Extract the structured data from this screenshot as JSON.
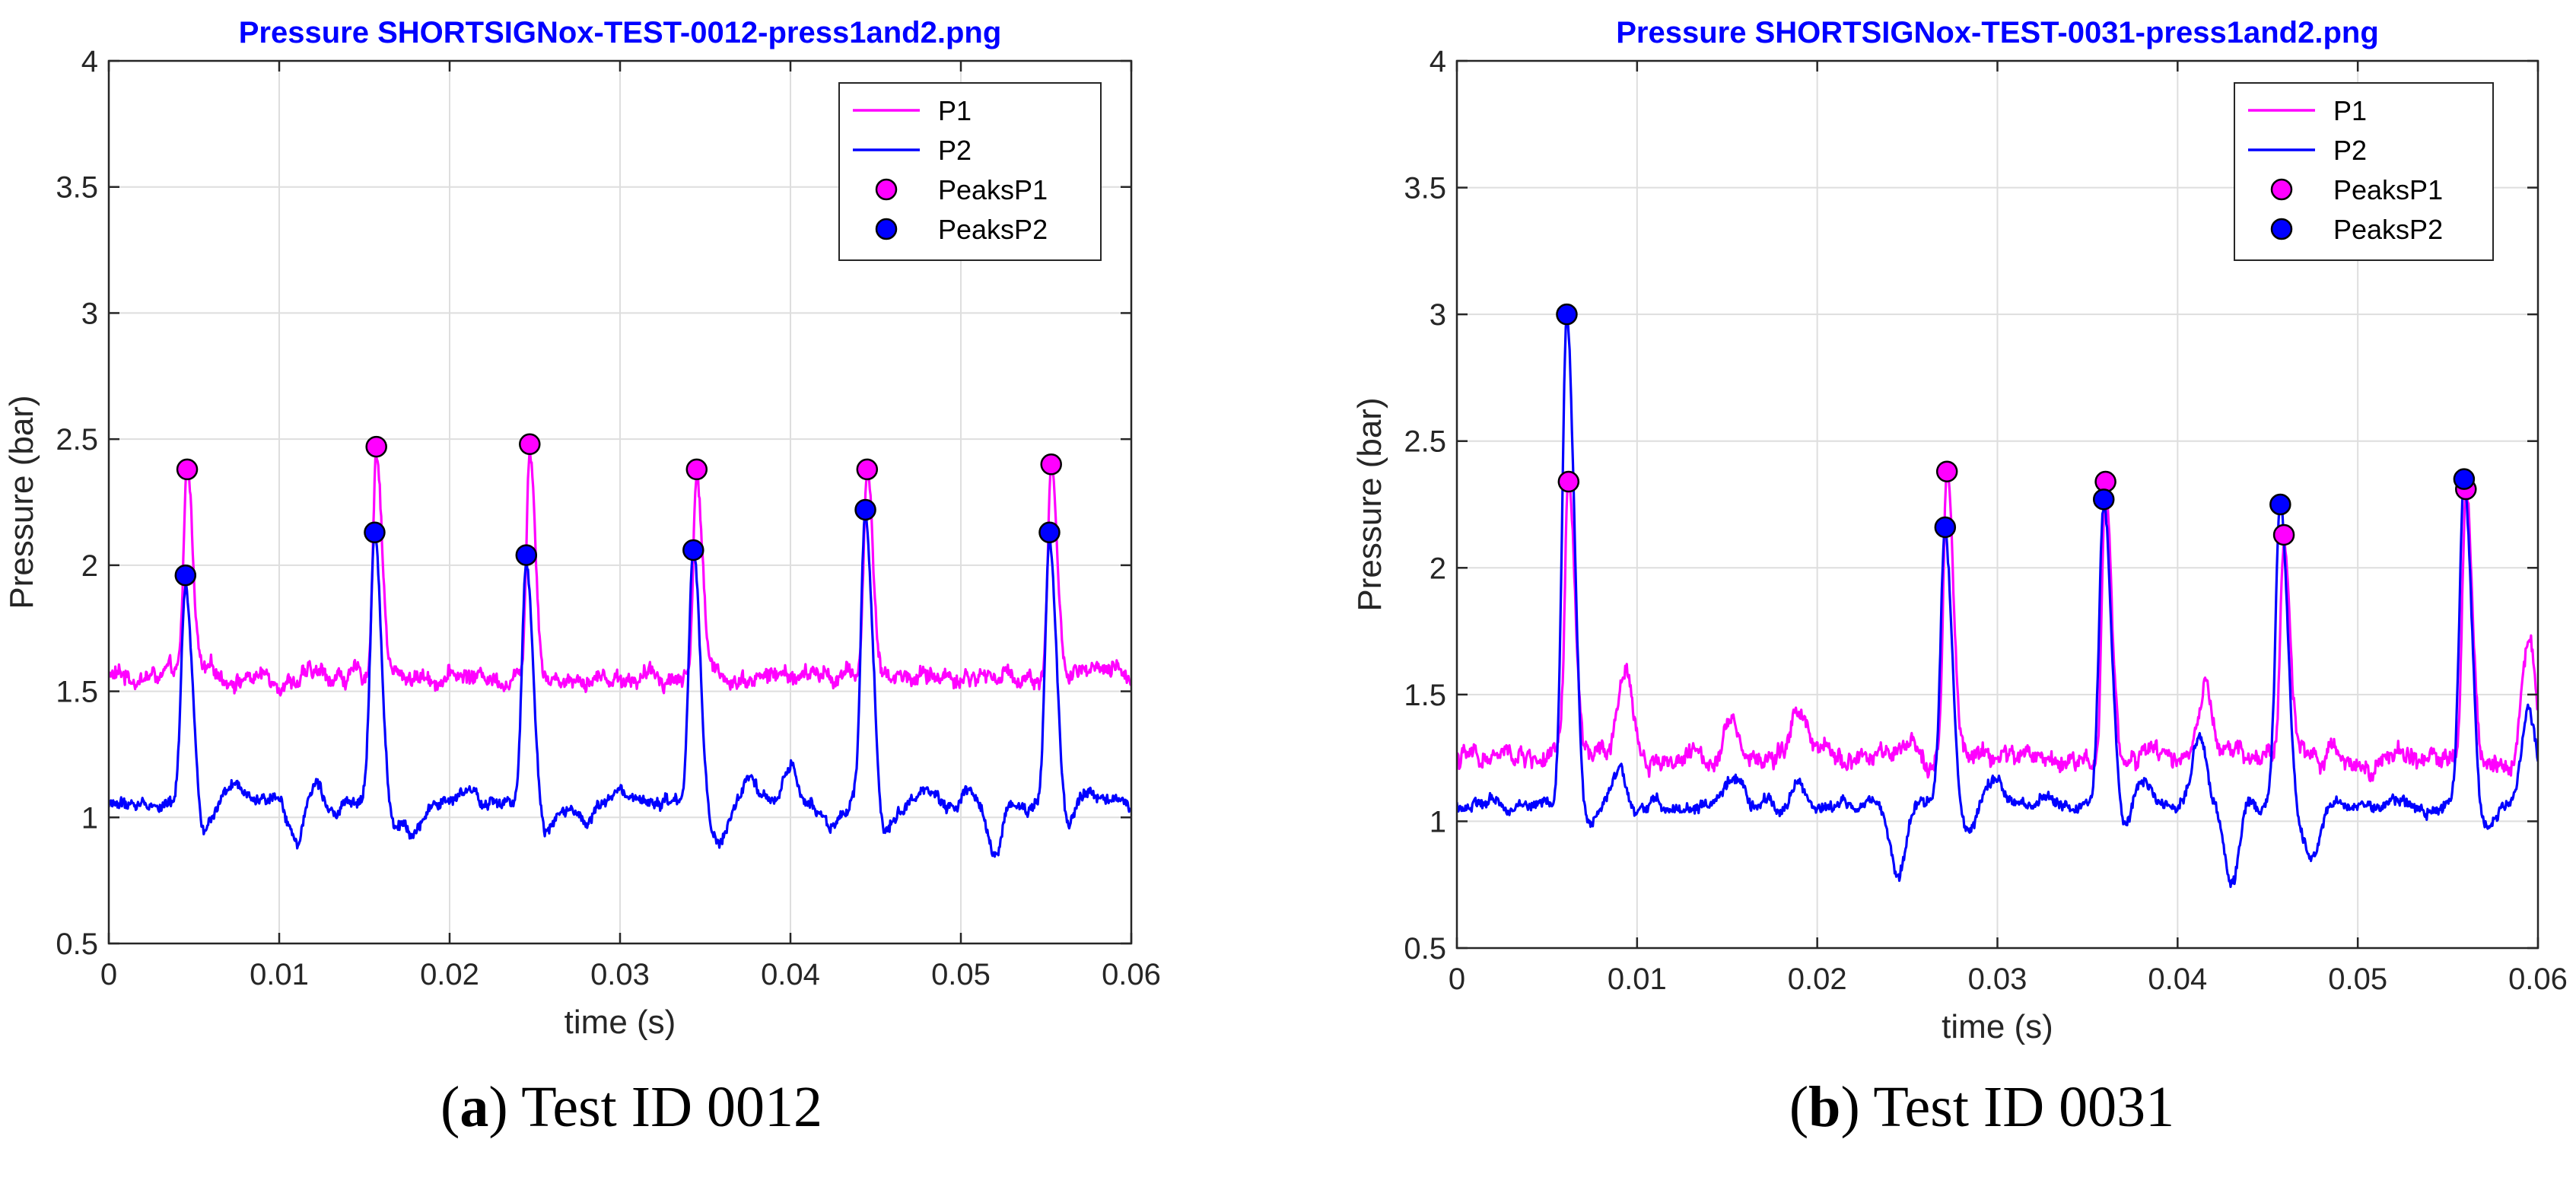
{
  "chart_data": [
    {
      "type": "line",
      "title": "Pressure SHORTSIGNox-TEST-0012-press1and2.png",
      "xlabel": "time (s)",
      "ylabel": "Pressure (bar)",
      "xlim": [
        0,
        0.06
      ],
      "ylim": [
        0.5,
        4
      ],
      "xticks": [
        0,
        0.01,
        0.02,
        0.03,
        0.04,
        0.05,
        0.06
      ],
      "xtick_labels": [
        "0",
        "0.01",
        "0.02",
        "0.03",
        "0.04",
        "0.05",
        "0.06"
      ],
      "yticks": [
        0.5,
        1,
        1.5,
        2,
        2.5,
        3,
        3.5,
        4
      ],
      "ytick_labels": [
        "0.5",
        "1",
        "1.5",
        "2",
        "2.5",
        "3",
        "3.5",
        "4"
      ],
      "grid": true,
      "legend_position": "top-right",
      "series": [
        {
          "name": "P1",
          "kind": "line",
          "color": "#ff00ff",
          "baseline": 1.56,
          "noise": 0.035,
          "peak_width": 0.00035
        },
        {
          "name": "P2",
          "kind": "line",
          "color": "#0000ff",
          "baseline": 1.05,
          "noise": 0.025,
          "peak_width": 0.00045,
          "bumps": [
            [
              0.0075,
              0.06
            ],
            [
              0.011,
              -0.15
            ],
            [
              0.0122,
              0.12
            ],
            [
              0.018,
              -0.1
            ],
            [
              0.021,
              0.05
            ],
            [
              0.028,
              -0.08
            ],
            [
              0.03,
              0.03
            ],
            [
              0.036,
              -0.12
            ],
            [
              0.0375,
              0.1
            ],
            [
              0.04,
              0.15
            ],
            [
              0.0425,
              -0.08
            ],
            [
              0.048,
              0.05
            ],
            [
              0.052,
              -0.2
            ],
            [
              0.0505,
              0.08
            ],
            [
              0.0575,
              0.05
            ]
          ]
        },
        {
          "name": "PeaksP1",
          "kind": "markers",
          "color": "#ff00ff",
          "x": [
            0.0046,
            0.0157,
            0.0247,
            0.0345,
            0.0445,
            0.0553
          ],
          "y": [
            2.38,
            2.47,
            2.48,
            2.38,
            2.38,
            2.4
          ]
        },
        {
          "name": "PeaksP2",
          "kind": "markers",
          "color": "#0000ff",
          "x": [
            0.0045,
            0.0156,
            0.0245,
            0.0343,
            0.0444,
            0.0552
          ],
          "y": [
            1.96,
            2.13,
            2.04,
            2.06,
            2.22,
            2.13
          ]
        }
      ]
    },
    {
      "type": "line",
      "title": "Pressure SHORTSIGNox-TEST-0031-press1and2.png",
      "xlabel": "time (s)",
      "ylabel": "Pressure (bar)",
      "xlim": [
        0,
        0.06
      ],
      "ylim": [
        0.5,
        4
      ],
      "xticks": [
        0,
        0.01,
        0.02,
        0.03,
        0.04,
        0.05,
        0.06
      ],
      "xtick_labels": [
        "0",
        "0.01",
        "0.02",
        "0.03",
        "0.04",
        "0.05",
        "0.06"
      ],
      "yticks": [
        0.5,
        1,
        1.5,
        2,
        2.5,
        3,
        3.5,
        4
      ],
      "ytick_labels": [
        "0.5",
        "1",
        "1.5",
        "2",
        "2.5",
        "3",
        "3.5",
        "4"
      ],
      "grid": true,
      "legend_position": "top-right",
      "series": [
        {
          "name": "P1",
          "kind": "line",
          "color": "#ff00ff",
          "baseline": 1.25,
          "noise": 0.04,
          "peak_width": 0.00035,
          "bumps": [
            [
              0.0094,
              0.35
            ],
            [
              0.0152,
              0.2
            ],
            [
              0.019,
              0.2
            ],
            [
              0.0415,
              0.25
            ],
            [
              0.0595,
              0.45
            ]
          ]
        },
        {
          "name": "P2",
          "kind": "line",
          "color": "#0000ff",
          "baseline": 1.06,
          "noise": 0.025,
          "peak_width": 0.00045,
          "bumps": [
            [
              0.0092,
              0.25
            ],
            [
              0.0095,
              -0.12
            ],
            [
              0.0155,
              0.12
            ],
            [
              0.019,
              0.1
            ],
            [
              0.0245,
              -0.28
            ],
            [
              0.0298,
              0.1
            ],
            [
              0.033,
              0.03
            ],
            [
              0.038,
              0.1
            ],
            [
              0.0412,
              0.3
            ],
            [
              0.043,
              -0.3
            ],
            [
              0.0475,
              -0.2
            ],
            [
              0.052,
              0.02
            ],
            [
              0.0595,
              0.4
            ]
          ]
        },
        {
          "name": "PeaksP1",
          "kind": "markers",
          "color": "#ff00ff",
          "x": [
            0.0062,
            0.0272,
            0.036,
            0.0459,
            0.056
          ],
          "y": [
            2.34,
            2.38,
            2.34,
            2.13,
            2.31
          ]
        },
        {
          "name": "PeaksP2",
          "kind": "markers",
          "color": "#0000ff",
          "x": [
            0.0061,
            0.0271,
            0.0359,
            0.0457,
            0.0559
          ],
          "y": [
            3.0,
            2.16,
            2.27,
            2.25,
            2.35
          ]
        }
      ]
    }
  ],
  "captions": [
    {
      "letter": "a",
      "text": " Test ID 0012"
    },
    {
      "letter": "b",
      "text": " Test ID 0031"
    }
  ]
}
